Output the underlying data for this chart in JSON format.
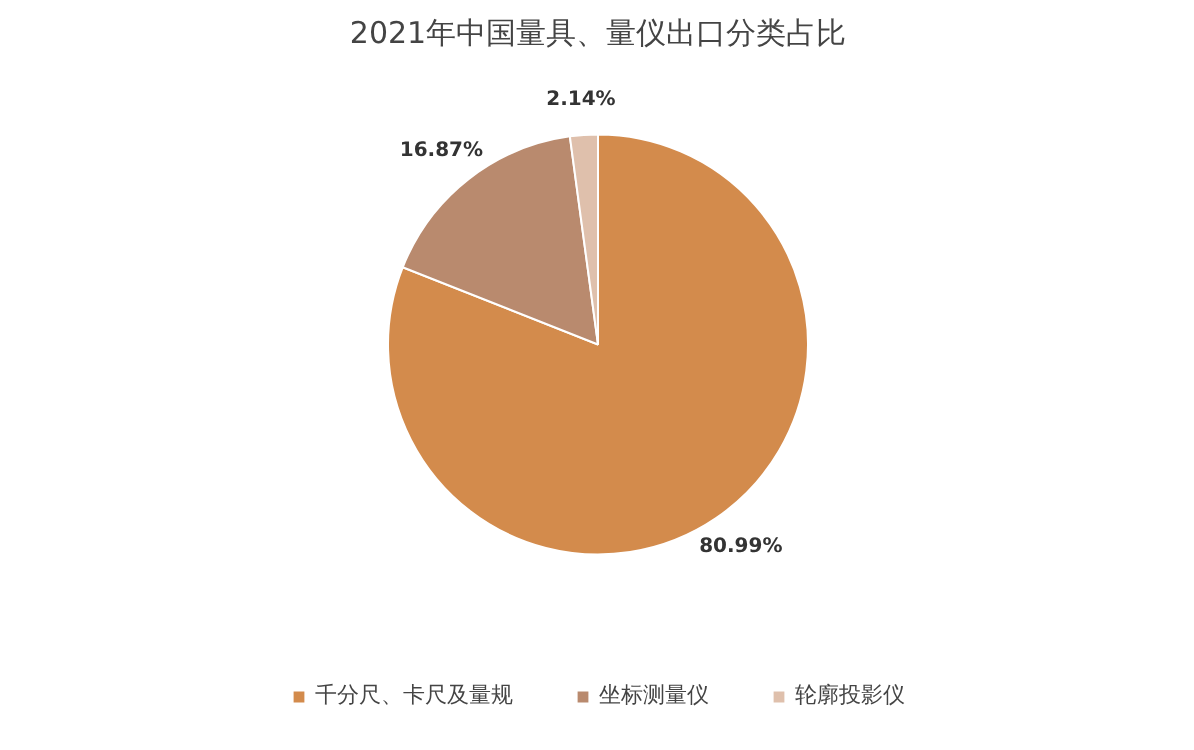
{
  "chart_data": {
    "type": "pie",
    "title": "2021年中国量具、量仪出口分类占比",
    "categories": [
      "千分尺、卡尺及量规",
      "坐标测量仪",
      "轮廓投影仪"
    ],
    "values": [
      80.99,
      16.87,
      2.14
    ],
    "colors": [
      "#d38b4c",
      "#b98a6e",
      "#dfc0ac"
    ],
    "value_labels": [
      "80.99%",
      "16.87%",
      "2.14%"
    ],
    "legend": "bottom"
  }
}
